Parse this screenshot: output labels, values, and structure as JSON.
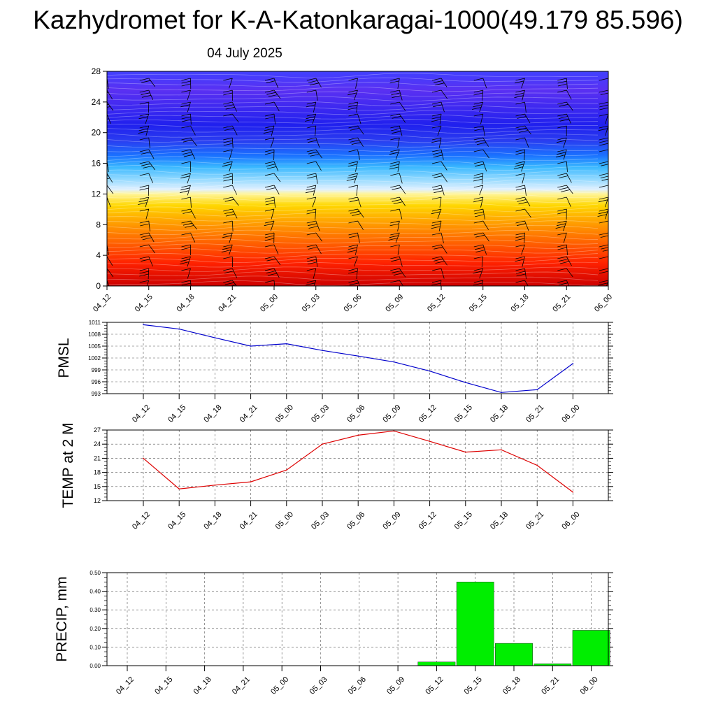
{
  "title": "Kazhydromet for K-A-Katonkaragai-1000(49.179 85.596)",
  "subtitle": "04 July 2025",
  "chart_data": [
    {
      "type": "heatmap",
      "description_free": true,
      "x": [
        "04_12",
        "04_15",
        "04_18",
        "04_21",
        "05_00",
        "05_03",
        "05_06",
        "05_09",
        "05_12",
        "05_15",
        "05_18",
        "05_21",
        "06_00"
      ],
      "y_ticks": [
        0,
        4,
        8,
        12,
        16,
        20,
        24,
        28
      ],
      "ylim": [
        0,
        28
      ],
      "colors": [
        "#cc0000",
        "#ff2200",
        "#ff6a00",
        "#ffa500",
        "#ffd700",
        "#fff59a",
        "#e0f0ff",
        "#8fd8ff",
        "#3ab8ff",
        "#1a72ff",
        "#2a3cf0",
        "#2020ee",
        "#3a28f0",
        "#5a30f2",
        "#4040ff"
      ],
      "color_stops_y": [
        0,
        3,
        6,
        8.5,
        10.5,
        12,
        12.6,
        14,
        15.5,
        17,
        19,
        21,
        23,
        25.5,
        28
      ]
    },
    {
      "type": "line",
      "ylabel": "PMSL",
      "x": [
        "04_12",
        "04_15",
        "04_18",
        "04_21",
        "05_00",
        "05_03",
        "05_06",
        "05_09",
        "05_12",
        "05_15",
        "05_18",
        "05_21",
        "06_00"
      ],
      "series": [
        {
          "values": [
            1010.4,
            1009.3,
            1007.1,
            1005.0,
            1005.6,
            1003.9,
            1002.5,
            1001.0,
            998.7,
            995.8,
            993.3,
            994.0,
            1000.6
          ],
          "color": "#0000cc"
        }
      ],
      "ylim": [
        993,
        1011
      ],
      "yticks": [
        "993",
        "996",
        "999",
        "1002",
        "1005",
        "1008",
        "1011"
      ]
    },
    {
      "type": "line",
      "ylabel": "TEMP at 2 M",
      "x": [
        "04_12",
        "04_15",
        "04_18",
        "04_21",
        "05_00",
        "05_03",
        "05_06",
        "05_09",
        "05_12",
        "05_15",
        "05_18",
        "05_21",
        "06_00"
      ],
      "series": [
        {
          "values": [
            21.0,
            14.5,
            15.3,
            16.0,
            18.5,
            24.0,
            25.9,
            26.8,
            24.6,
            22.3,
            22.8,
            19.5,
            13.8
          ],
          "color": "#dd0000"
        }
      ],
      "ylim": [
        12,
        27
      ],
      "yticks": [
        "12",
        "15",
        "18",
        "21",
        "24",
        "27"
      ]
    },
    {
      "type": "bar",
      "ylabel": "PRECIP, mm",
      "categories": [
        "04_12",
        "04_15",
        "04_18",
        "04_21",
        "05_00",
        "05_03",
        "05_06",
        "05_09",
        "05_12",
        "05_15",
        "05_18",
        "05_21",
        "06_00"
      ],
      "values": [
        0,
        0,
        0,
        0,
        0,
        0,
        0,
        0,
        0.02,
        0.45,
        0.12,
        0.01,
        0.19
      ],
      "color": "#00ee00",
      "ylim": [
        0,
        0.5
      ],
      "yticks": [
        "0.00",
        "0.10",
        "0.20",
        "0.30",
        "0.40",
        "0.50"
      ]
    }
  ]
}
